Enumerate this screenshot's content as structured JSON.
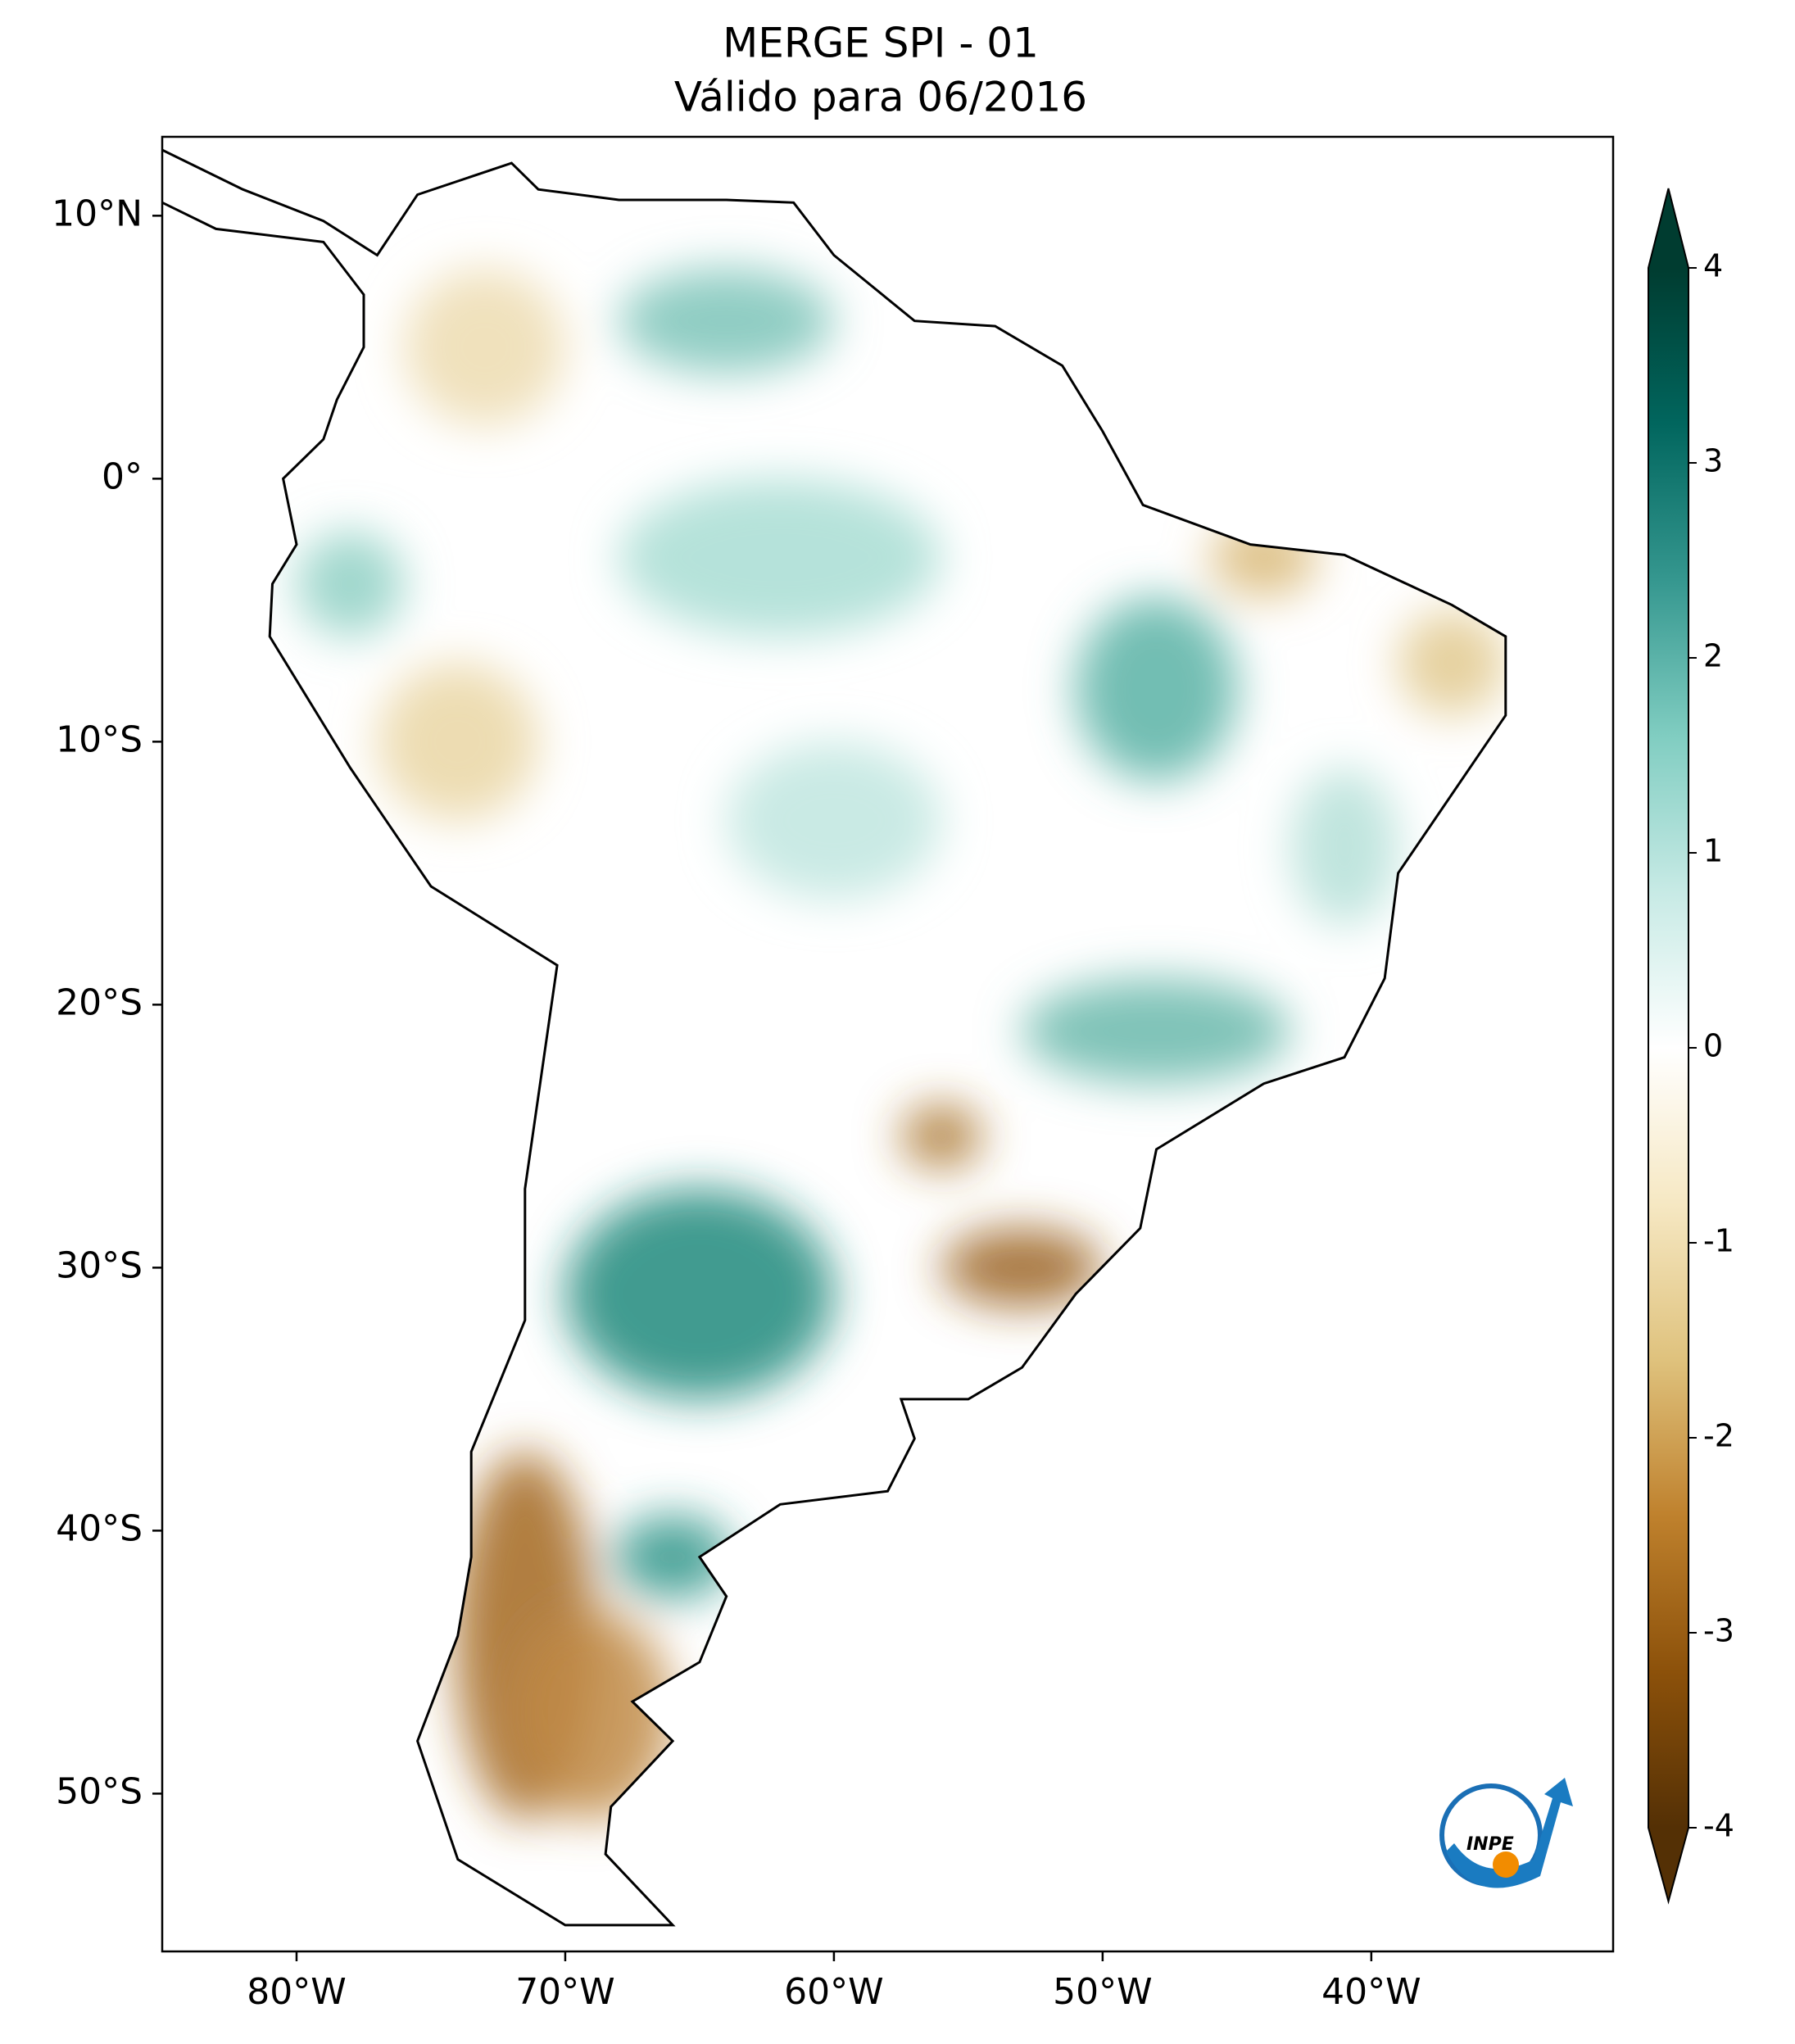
{
  "chart_data": {
    "type": "map",
    "title": "MERGE   SPI - 01",
    "subtitle": "Válido para 06/2016",
    "xlim": [
      -85,
      -31
    ],
    "ylim": [
      -56,
      13
    ],
    "xticks": [
      {
        "value": -80,
        "label": "80°W"
      },
      {
        "value": -70,
        "label": "70°W"
      },
      {
        "value": -60,
        "label": "60°W"
      },
      {
        "value": -50,
        "label": "50°W"
      },
      {
        "value": -40,
        "label": "40°W"
      }
    ],
    "yticks": [
      {
        "value": 10,
        "label": "10°N"
      },
      {
        "value": 0,
        "label": "0°"
      },
      {
        "value": -10,
        "label": "10°S"
      },
      {
        "value": -20,
        "label": "20°S"
      },
      {
        "value": -30,
        "label": "30°S"
      },
      {
        "value": -40,
        "label": "40°S"
      },
      {
        "value": -50,
        "label": "50°S"
      }
    ],
    "colorbar": {
      "lim": [
        -4,
        4
      ],
      "ticks": [
        -4,
        -3,
        -2,
        -1,
        0,
        1,
        2,
        3,
        4
      ],
      "colors": [
        "#543005",
        "#8c510a",
        "#bf812d",
        "#dfc27d",
        "#f6e8c3",
        "#ffffff",
        "#c7eae5",
        "#80cdc1",
        "#35978f",
        "#01665e",
        "#003c30"
      ]
    },
    "logo_text": "INPE"
  }
}
